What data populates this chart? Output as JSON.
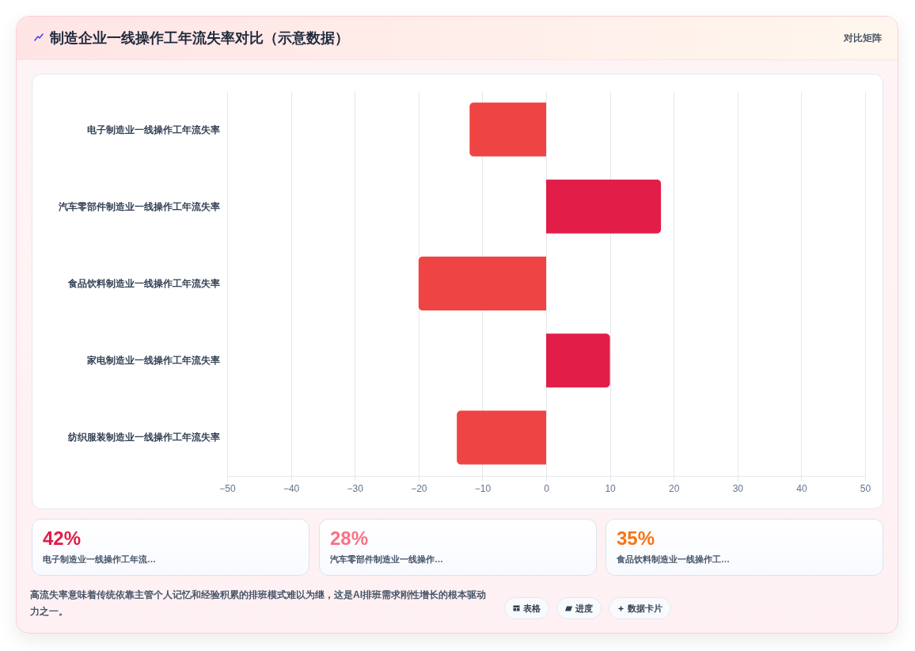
{
  "chart_data": {
    "type": "bar",
    "orientation": "horizontal",
    "title": "制造企业一线操作工年流失率对比（示意数据）",
    "categories": [
      "电子制造业一线操作工年流失率",
      "汽车零部件制造业一线操作工年流失率",
      "食品饮料制造业一线操作工年流失率",
      "家电制造业一线操作工年流失率",
      "纺织服装制造业一线操作工年流失率"
    ],
    "values": [
      -12,
      18,
      -20,
      10,
      -14
    ],
    "colors": [
      "#ef4444",
      "#e11d48",
      "#ef4444",
      "#e11d48",
      "#ef4444"
    ],
    "xlim": [
      -50,
      50
    ],
    "xticks": [
      -50,
      -40,
      -30,
      -20,
      -10,
      0,
      10,
      20,
      30,
      40,
      50
    ],
    "grid": "x",
    "annotations": [
      "对比矩阵",
      "42%",
      "电子制造业一线操作工年流…",
      "28%",
      "汽车零部件制造业一线操作…",
      "35%",
      "食品饮料制造业一线操作工…",
      "高流失率意味着传统依靠主管个人记忆和经验积累的排班模式难以为继，这是AI排班需求刚性增长的根本驱动力之一。",
      "表格",
      "进度",
      "数据卡片"
    ]
  }
}
